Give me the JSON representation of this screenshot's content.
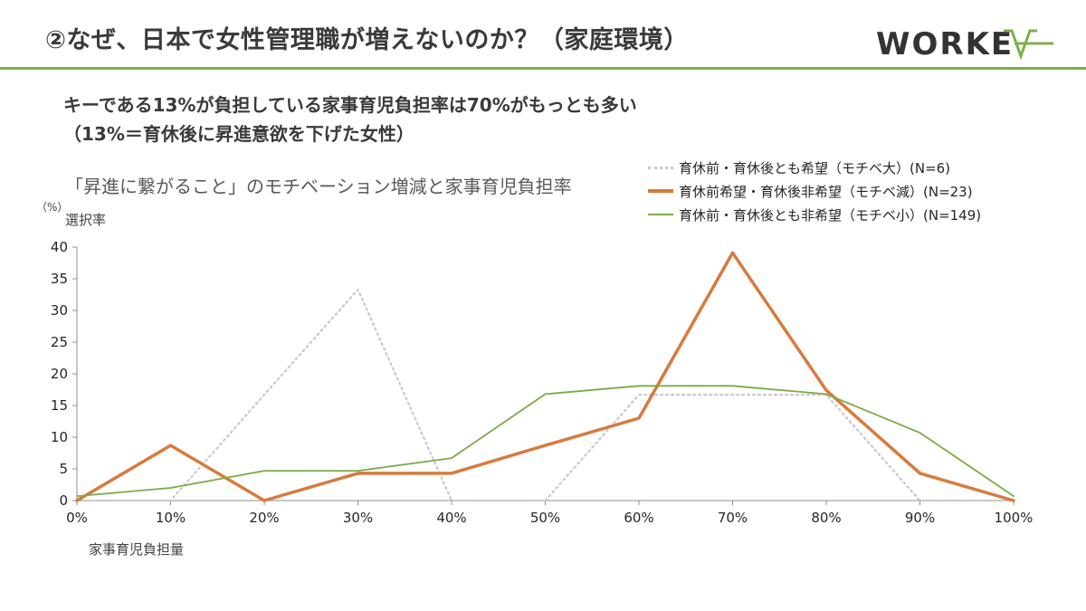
{
  "header": {
    "title": "②なぜ、日本で女性管理職が増えないのか？（家庭環境）",
    "logo_text": "WORKEX"
  },
  "headline": {
    "line1": "キーである13%が負担している家事育児負担率は70%がもっとも多い",
    "line2": "（13%＝育休後に昇進意欲を下げた女性）"
  },
  "colors": {
    "accent_green": "#7db04a",
    "series_gray": "#c8c8d0",
    "series_orange": "#d87a3c",
    "series_green": "#7aaa48"
  },
  "chart_data": {
    "type": "line",
    "title": "「昇進に繋がること」のモチベーション増減と家事育児負担率",
    "unit_label": "（%）",
    "ylabel": "選択率",
    "xlabel": "家事育児負担量",
    "x": [
      "0%",
      "10%",
      "20%",
      "30%",
      "40%",
      "50%",
      "60%",
      "70%",
      "80%",
      "90%",
      "100%"
    ],
    "ylim": [
      0,
      40
    ],
    "yticks": [
      0,
      5,
      10,
      15,
      20,
      25,
      30,
      35,
      40
    ],
    "legend_position": "top-right",
    "grid": false,
    "series": [
      {
        "name": "育休前・育休後とも希望（モチベ大）(N=6)",
        "style": "dotted",
        "color": "#c8c8d0",
        "values": [
          0,
          0,
          16.7,
          33.3,
          0,
          0,
          16.7,
          16.7,
          16.7,
          0,
          0
        ]
      },
      {
        "name": "育休前希望・育休後非希望（モチベ減）(N=23)",
        "style": "solid-thick",
        "color": "#d87a3c",
        "values": [
          0,
          8.7,
          0,
          4.3,
          4.3,
          8.7,
          13.0,
          39.1,
          17.4,
          4.3,
          0
        ]
      },
      {
        "name": "育休前・育休後とも非希望（モチベ小）(N=149)",
        "style": "solid",
        "color": "#7aaa48",
        "values": [
          0.7,
          2.0,
          4.7,
          4.7,
          6.7,
          16.8,
          18.1,
          18.1,
          16.8,
          10.7,
          0.7
        ]
      }
    ]
  }
}
